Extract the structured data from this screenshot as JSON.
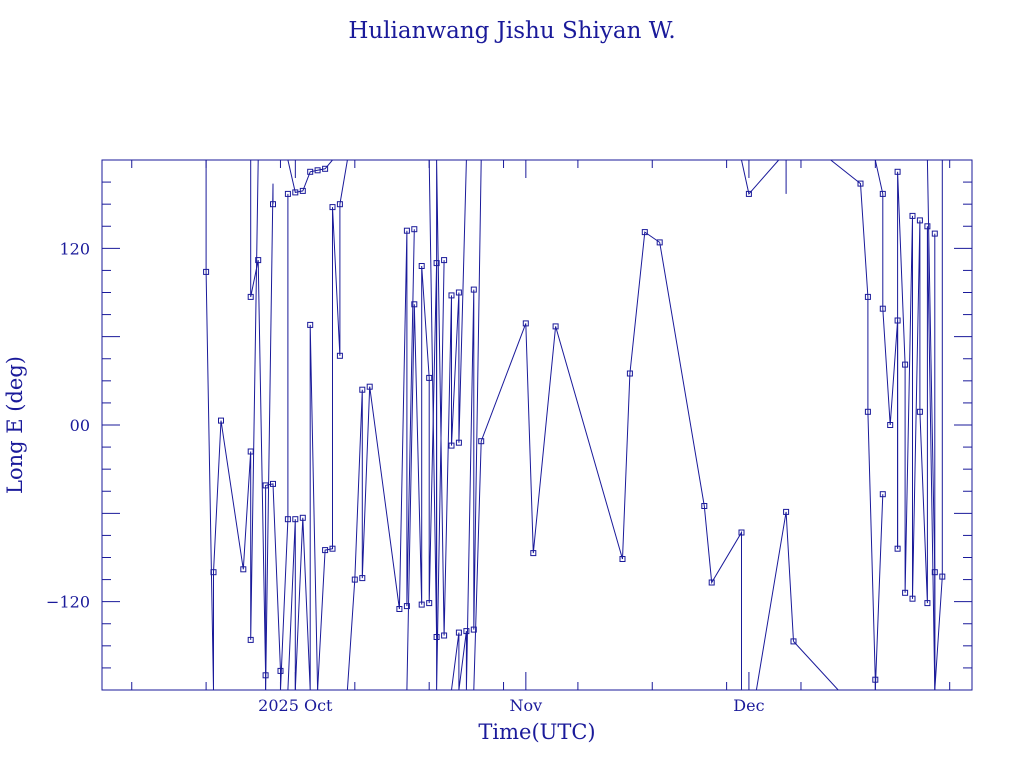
{
  "chart_data": {
    "type": "line",
    "title": "Hulianwang Jishu Shiyan W.",
    "xlabel": "Time(UTC)",
    "ylabel": "Long E (deg)",
    "ylim": [
      -180,
      180
    ],
    "xlim": [
      "2025-09-05",
      "2025-12-31"
    ],
    "x_ticks": [
      {
        "label": "2025 Oct",
        "date": "2025-10-01"
      },
      {
        "label": "Nov",
        "date": "2025-11-01"
      },
      {
        "label": "Dec",
        "date": "2025-12-01"
      }
    ],
    "y_ticks": [
      {
        "label": "120",
        "value": 120
      },
      {
        "label": "00",
        "value": 0
      },
      {
        "label": "−120",
        "value": -120
      }
    ],
    "line_color": "#1a1a9a",
    "series": [
      {
        "x": [
          "2025-09-19",
          "2025-09-19",
          "2025-09-20",
          "2025-09-20",
          "2025-09-21",
          "2025-09-24",
          "2025-09-25",
          "2025-09-25",
          "2025-09-26"
        ],
        "y": [
          180,
          104,
          -180,
          -100,
          3,
          -98,
          -18,
          -146,
          180
        ],
        "marker": [
          false,
          true,
          false,
          true,
          true,
          true,
          true,
          true,
          false
        ]
      },
      {
        "x": [
          "2025-09-25",
          "2025-09-25",
          "2025-09-26",
          "2025-09-27",
          "2025-09-27",
          "2025-09-28",
          "2025-09-28"
        ],
        "y": [
          180,
          87,
          112,
          -170,
          -180,
          164,
          150
        ],
        "marker": [
          false,
          true,
          true,
          true,
          false,
          false,
          true
        ]
      },
      {
        "x": [
          "2025-09-27",
          "2025-09-27",
          "2025-09-28",
          "2025-09-29",
          "2025-09-29",
          "2025-09-30",
          "2025-09-30"
        ],
        "y": [
          -180,
          -41,
          -40,
          -167,
          -180,
          -64,
          157
        ],
        "marker": [
          false,
          true,
          true,
          true,
          false,
          true,
          true
        ]
      },
      {
        "x": [
          "2025-09-30",
          "2025-10-01",
          "2025-10-02",
          "2025-10-03",
          "2025-10-04",
          "2025-10-05",
          "2025-10-06"
        ],
        "y": [
          180,
          158,
          159,
          172,
          173,
          174,
          180
        ],
        "marker": [
          false,
          true,
          true,
          true,
          true,
          true,
          false
        ]
      },
      {
        "x": [
          "2025-09-30",
          "2025-10-01",
          "2025-10-01",
          "2025-10-02",
          "2025-10-03",
          "2025-10-03",
          "2025-10-04"
        ],
        "y": [
          -180,
          -64,
          -180,
          -63,
          -180,
          68,
          -180
        ],
        "marker": [
          false,
          true,
          false,
          true,
          false,
          true,
          false
        ]
      },
      {
        "x": [
          "2025-10-04",
          "2025-10-05",
          "2025-10-06",
          "2025-10-06",
          "2025-10-07",
          "2025-10-07",
          "2025-10-08"
        ],
        "y": [
          -180,
          -85,
          -84,
          148,
          47,
          150,
          180
        ],
        "marker": [
          false,
          true,
          true,
          true,
          true,
          true,
          false
        ]
      },
      {
        "x": [
          "2025-10-08",
          "2025-10-09",
          "2025-10-10",
          "2025-10-10",
          "2025-10-11"
        ],
        "y": [
          -180,
          -105,
          24,
          -104,
          26
        ],
        "marker": [
          false,
          true,
          true,
          true,
          true
        ]
      },
      {
        "x": [
          "2025-10-11",
          "2025-10-15",
          "2025-10-16",
          "2025-10-16",
          "2025-10-17"
        ],
        "y": [
          26,
          -125,
          132,
          -123,
          133
        ],
        "marker": [
          false,
          true,
          true,
          true,
          true
        ]
      },
      {
        "x": [
          "2025-10-16",
          "2025-10-17",
          "2025-10-18",
          "2025-10-18",
          "2025-10-19",
          "2025-10-19",
          "2025-10-20",
          "2025-10-20",
          "2025-10-21"
        ],
        "y": [
          -180,
          82,
          -122,
          108,
          32,
          -121,
          110,
          -180,
          112
        ],
        "marker": [
          false,
          true,
          true,
          true,
          true,
          true,
          true,
          false,
          true
        ]
      },
      {
        "x": [
          "2025-10-19",
          "2025-10-20",
          "2025-10-20",
          "2025-10-21",
          "2025-10-22",
          "2025-10-22",
          "2025-10-23",
          "2025-10-23",
          "2025-10-24"
        ],
        "y": [
          180,
          -144,
          180,
          -143,
          88,
          -14,
          90,
          -12,
          180
        ],
        "marker": [
          false,
          true,
          false,
          true,
          true,
          true,
          true,
          true,
          false
        ]
      },
      {
        "x": [
          "2025-10-22",
          "2025-10-23",
          "2025-10-23",
          "2025-10-24",
          "2025-10-24",
          "2025-10-25",
          "2025-10-25",
          "2025-10-26"
        ],
        "y": [
          -180,
          -141,
          -180,
          -140,
          -180,
          92,
          -139,
          180
        ],
        "marker": [
          false,
          true,
          false,
          true,
          false,
          true,
          true,
          false
        ]
      },
      {
        "x": [
          "2025-10-25",
          "2025-10-26",
          "2025-11-01",
          "2025-11-02",
          "2025-11-05"
        ],
        "y": [
          -180,
          -11,
          69,
          -87,
          67
        ],
        "marker": [
          false,
          true,
          true,
          true,
          true
        ]
      },
      {
        "x": [
          "2025-11-05",
          "2025-11-14",
          "2025-11-15",
          "2025-11-17",
          "2025-11-19"
        ],
        "y": [
          67,
          -91,
          35,
          131,
          124
        ],
        "marker": [
          false,
          true,
          true,
          true,
          true
        ]
      },
      {
        "x": [
          "2025-11-19",
          "2025-11-25",
          "2025-11-26",
          "2025-11-30",
          "2025-11-30"
        ],
        "y": [
          124,
          -55,
          -107,
          -73,
          -180
        ],
        "marker": [
          false,
          true,
          true,
          true,
          false
        ]
      },
      {
        "x": [
          "2025-11-30",
          "2025-12-01",
          "2025-12-05",
          "2025-12-06",
          "2025-12-06"
        ],
        "y": [
          180,
          157,
          180,
          180,
          157
        ],
        "marker": [
          false,
          true,
          false,
          false,
          false
        ]
      },
      {
        "x": [
          "2025-12-02",
          "2025-12-06",
          "2025-12-07"
        ],
        "y": [
          -180,
          -59,
          -147
        ],
        "marker": [
          false,
          true,
          true
        ]
      },
      {
        "x": [
          "2025-12-07",
          "2025-12-13"
        ],
        "y": [
          -147,
          -180
        ],
        "marker": [
          false,
          false
        ]
      },
      {
        "x": [
          "2025-12-12",
          "2025-12-16",
          "2025-12-17",
          "2025-12-17",
          "2025-12-18",
          "2025-12-18",
          "2025-12-19"
        ],
        "y": [
          180,
          164,
          87,
          9,
          -173,
          -180,
          -47
        ],
        "marker": [
          false,
          true,
          true,
          true,
          true,
          false,
          true
        ]
      },
      {
        "x": [
          "2025-12-18",
          "2025-12-19",
          "2025-12-19",
          "2025-12-20",
          "2025-12-21",
          "2025-12-21"
        ],
        "y": [
          180,
          157,
          79,
          0,
          71,
          -84
        ],
        "marker": [
          false,
          true,
          true,
          true,
          true,
          true
        ]
      },
      {
        "x": [
          "2025-12-21",
          "2025-12-21",
          "2025-12-22",
          "2025-12-22",
          "2025-12-23",
          "2025-12-23"
        ],
        "y": [
          -84,
          172,
          41,
          -114,
          142,
          -118
        ],
        "marker": [
          false,
          true,
          true,
          true,
          true,
          true
        ]
      },
      {
        "x": [
          "2025-12-23",
          "2025-12-24",
          "2025-12-24",
          "2025-12-25",
          "2025-12-25",
          "2025-12-26",
          "2025-12-26"
        ],
        "y": [
          -118,
          139,
          9,
          -121,
          135,
          -180,
          130
        ],
        "marker": [
          false,
          true,
          true,
          true,
          true,
          false,
          true
        ]
      },
      {
        "x": [
          "2025-12-25",
          "2025-12-26",
          "2025-12-26",
          "2025-12-27",
          "2025-12-27"
        ],
        "y": [
          180,
          -100,
          -180,
          -103,
          180
        ],
        "marker": [
          false,
          true,
          false,
          true,
          false
        ]
      }
    ]
  }
}
